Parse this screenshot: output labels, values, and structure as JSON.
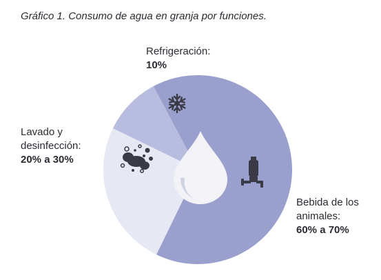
{
  "title": "Gráfico 1. Consumo de agua en granja por funciones.",
  "chart_data": {
    "type": "pie",
    "slices": [
      {
        "label": "Bebida de los animales:",
        "value_text": "60% a 70%",
        "value": 65,
        "color": "#9aa0cd",
        "icon": "faucet-bottle-icon"
      },
      {
        "label": "Lavado y desinfección:",
        "value_text": "20% a 30%",
        "value": 25,
        "color": "#e6e8f4",
        "icon": "cleaning-bubbles-icon"
      },
      {
        "label": "Refrigeración:",
        "value_text": "10%",
        "value": 10,
        "color": "#b8bde0",
        "icon": "snowflake-icon"
      }
    ],
    "center_icon": "water-drop-icon"
  }
}
